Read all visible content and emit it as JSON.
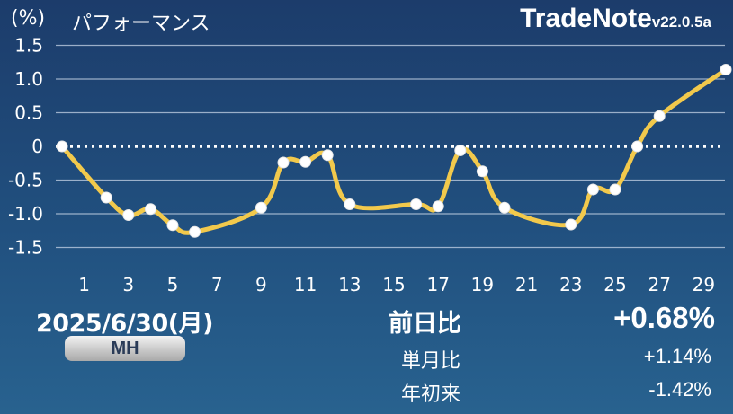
{
  "header": {
    "unit_label": "(%)",
    "title": "パフォーマンス",
    "brand": "TradeNote",
    "version": "v22.0.5a"
  },
  "chart_data": {
    "type": "line",
    "ylabel": "(%)",
    "ylim": [
      -1.6,
      1.7
    ],
    "xlim": [
      0,
      30
    ],
    "yticks": [
      1.5,
      1.0,
      0.5,
      0,
      -0.5,
      -1.0,
      -1.5
    ],
    "ytick_labels": [
      "1.5",
      "1.0",
      "0.5",
      "0",
      "-0.5",
      "-1.0",
      "-1.5"
    ],
    "xticks": [
      1,
      3,
      5,
      7,
      9,
      11,
      13,
      15,
      17,
      19,
      21,
      23,
      25,
      27,
      29
    ],
    "x": [
      0,
      2,
      3,
      4,
      5,
      6,
      9,
      10,
      11,
      12,
      13,
      16,
      17,
      18,
      19,
      20,
      23,
      24,
      25,
      26,
      27,
      30
    ],
    "y": [
      0,
      -0.76,
      -1.02,
      -0.93,
      -1.17,
      -1.27,
      -0.91,
      -0.24,
      -0.23,
      -0.13,
      -0.86,
      -0.86,
      -0.89,
      -0.06,
      -0.37,
      -0.91,
      -1.16,
      -0.64,
      -0.64,
      0,
      0.45,
      1.14
    ],
    "zero_line": true,
    "grid": true,
    "line_color": "#f2c94c",
    "point_color": "#ffffff"
  },
  "summary": {
    "date": "2025/6/30(月)",
    "badge": "MH",
    "daily_label": "前日比",
    "daily_value": "+0.68%",
    "monthly_label": "単月比",
    "monthly_value": "+1.14%",
    "ytd_label": "年初来",
    "ytd_value": "-1.42%"
  }
}
